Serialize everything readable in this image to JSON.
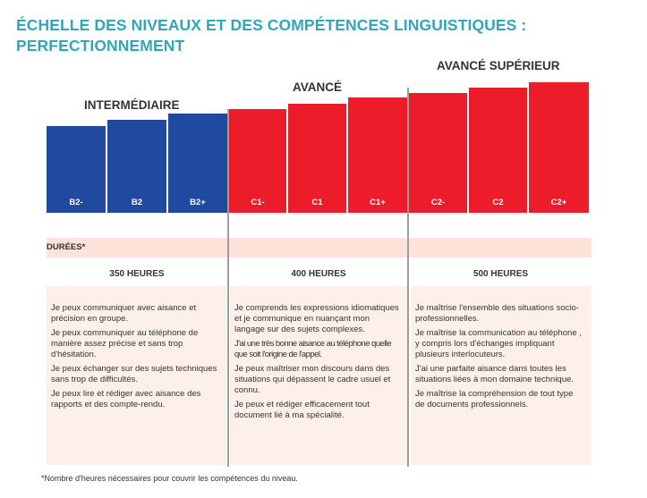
{
  "title": {
    "line1": "ÉCHELLE DES NIVEAUX ET DES COMPÉTENCES LINGUISTIQUES :",
    "line2": "PERFECTIONNEMENT"
  },
  "colors": {
    "title": "#2fa7b9",
    "blue_bar": "#1f4aa0",
    "red_bar": "#ec1c2b",
    "band": "#fbe3da",
    "panel": "#fdf0e9",
    "divider": "#9e9e9e"
  },
  "groups": [
    {
      "label": "INTERMÉDIAIRE",
      "hours": "350 HEURES"
    },
    {
      "label": "AVANCÉ",
      "hours": "400 HEURES"
    },
    {
      "label": "AVANCÉ SUPÉRIEUR",
      "hours": "500 HEURES"
    }
  ],
  "levels": [
    "B2-",
    "B2",
    "B2+",
    "C1-",
    "C1",
    "C1+",
    "C2-",
    "C2",
    "C2+"
  ],
  "durations_label": "DURÉES*",
  "descriptions": {
    "intermediaire": [
      "Je peux communiquer avec aisance et précision en groupe.",
      "Je peux communiquer au téléphone de manière assez précise et sans trop d'hésitation.",
      "Je peux échanger sur des sujets techniques sans trop de difficultés.",
      "Je peux lire et rédiger avec aisance des rapports et des compte-rendu."
    ],
    "avance": [
      "Je comprends les expressions idiomatiques et je communique en nuançant mon langage sur des sujets complexes.",
      "J'ai une très bonne aisance au téléphone quelle que soit l'origine de l'appel.",
      "Je peux maîtriser mon discours dans des situations qui dépassent le cadre usuel et connu.",
      "Je peux et rédiger efficacement tout document lié à ma spécialité."
    ],
    "avance_superieur": [
      "Je maîtrise l'ensemble des situations socio-professionnelles.",
      "Je maîtrise la communication au téléphone , y compris lors d'échanges impliquant plusieurs interlocuteurs.",
      "J'ai une parfaite aisance dans toutes les situations liées à mon domaine technique.",
      "Je maîtrise la compréhension de tout type de documents professionnels."
    ]
  },
  "footnote": "*Nombre d'heures nécessaires pour couvrir les compétences du niveau."
}
